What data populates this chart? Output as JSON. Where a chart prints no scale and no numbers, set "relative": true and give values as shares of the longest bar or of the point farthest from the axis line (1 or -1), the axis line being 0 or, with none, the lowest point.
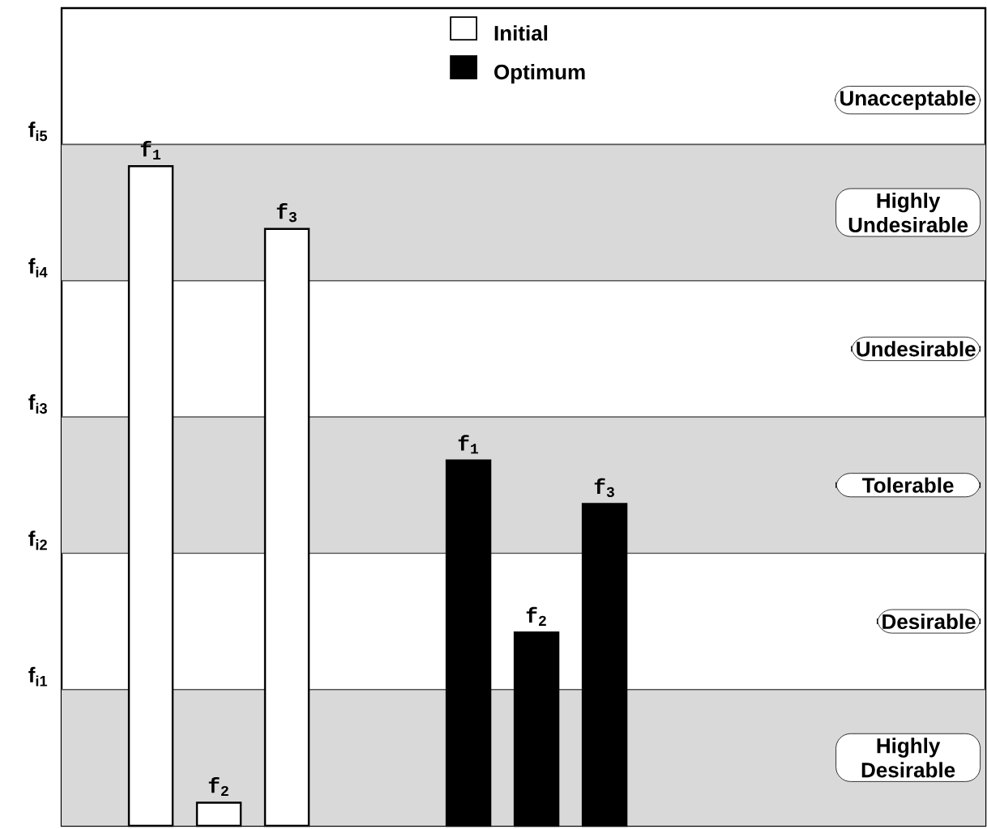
{
  "chart_data": {
    "type": "bar",
    "relative": true,
    "categories": [
      null,
      null
    ],
    "series": [
      {
        "name": "f$_{1}$",
        "colors": [
          "#ffffff",
          "#000000"
        ],
        "values": [
          1,
          0.554
        ]
      },
      {
        "name": "f$_{2}$",
        "colors": [
          "#ffffff",
          "#000000"
        ],
        "values": [
          0.035,
          0.293
        ]
      },
      {
        "name": "f$_{3}$",
        "colors": [
          "#ffffff",
          "#000000"
        ],
        "values": [
          0.905,
          0.488
        ]
      }
    ],
    "legend": "top",
    "ref_lines": [
      {
        "axis": "y",
        "value": 0.2066,
        "label": "f$_{i1}$",
        "color": "#555555"
      },
      {
        "axis": "y",
        "value": 0.4132,
        "label": "f$_{i2}$",
        "color": "#555555"
      },
      {
        "axis": "y",
        "value": 0.6198,
        "label": "f$_{i3}$",
        "color": "#555555"
      },
      {
        "axis": "y",
        "value": 0.8264,
        "label": "f$_{i4}$",
        "color": "#555555"
      },
      {
        "axis": "y",
        "value": 1.0331,
        "label": "f$_{i5}$",
        "color": "#555555"
      }
    ],
    "bands": [
      {
        "axis": "y",
        "from": 0,
        "to": 0.2066,
        "label": "Highly Desirable",
        "color": "#d9d9d9"
      },
      {
        "axis": "y",
        "from": 0.4132,
        "to": 0.6198,
        "label": "Tolerable",
        "color": "#d9d9d9"
      },
      {
        "axis": "y",
        "from": 0.8264,
        "to": 1.0331,
        "label": "Highly Undesirable",
        "color": "#d9d9d9"
      }
    ],
    "annotations": [
      "Initial",
      "Optimum",
      "Desirable",
      "Undesirable",
      "Unacceptable"
    ]
  }
}
